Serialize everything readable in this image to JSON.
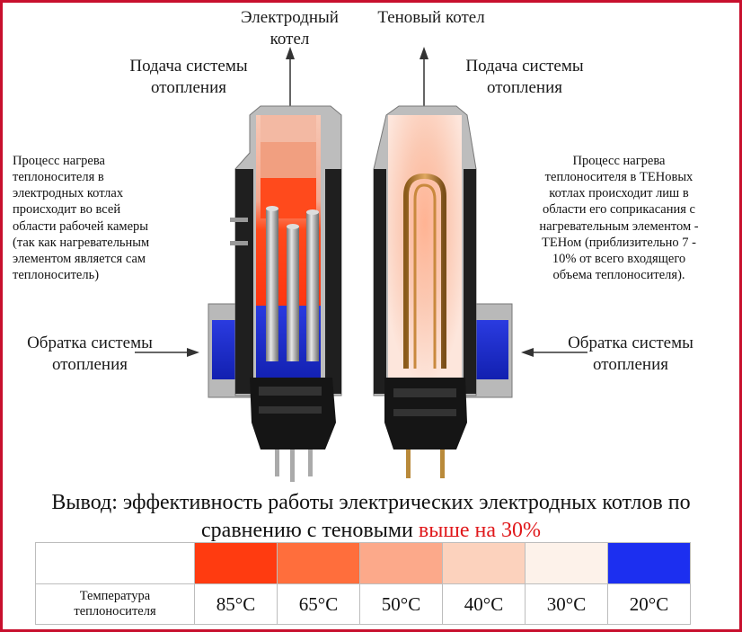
{
  "top_labels": {
    "electrode_title": [
      "Электродный",
      "котел"
    ],
    "ten_title": "Теновый котел"
  },
  "supply_left": [
    "Подача системы",
    "отопления"
  ],
  "supply_right": [
    "Подача системы",
    "отопления"
  ],
  "return_left": [
    "Обратка системы",
    "отопления"
  ],
  "return_right": [
    "Обратка системы",
    "отопления"
  ],
  "left_description": [
    "Процесс нагрева",
    "теплоносителя в",
    "электродных котлах",
    "происходит во всей",
    "области рабочей камеры",
    "(так как нагревательным",
    "элементом является сам",
    "теплоноситель)"
  ],
  "right_description": [
    "Процесс нагрева",
    "теплоносителя в ТЕНовых",
    "котлах происходит лиш в",
    "области его соприкасания с",
    "нагревательным элементом -",
    "ТЕНом  (приблизительно 7 -",
    "10% от всего входящего",
    "объема теплоносителя)."
  ],
  "conclusion": {
    "line1": "Вывод: эффективность работы электрических электродных котлов по",
    "line2_prefix": "сравнению с теновыми ",
    "line2_highlight": "выше на 30%"
  },
  "legend": {
    "row_label": [
      "Температура",
      "теплоносителя"
    ],
    "items": [
      {
        "temp": "85°C",
        "color": "#ff3b10"
      },
      {
        "temp": "65°C",
        "color": "#ff6e3c"
      },
      {
        "temp": "50°C",
        "color": "#fca98a"
      },
      {
        "temp": "40°C",
        "color": "#fcd2bd"
      },
      {
        "temp": "30°C",
        "color": "#fdf2ea"
      },
      {
        "temp": "20°C",
        "color": "#1c2ff0"
      }
    ]
  },
  "colors": {
    "highlight": "#e0181b",
    "frame": "#c8102e",
    "cold_water": "#1a2bd6",
    "hot_water": "#ff3b10",
    "shell": "#b9b9b9",
    "body_dark": "#1b1b1b"
  }
}
